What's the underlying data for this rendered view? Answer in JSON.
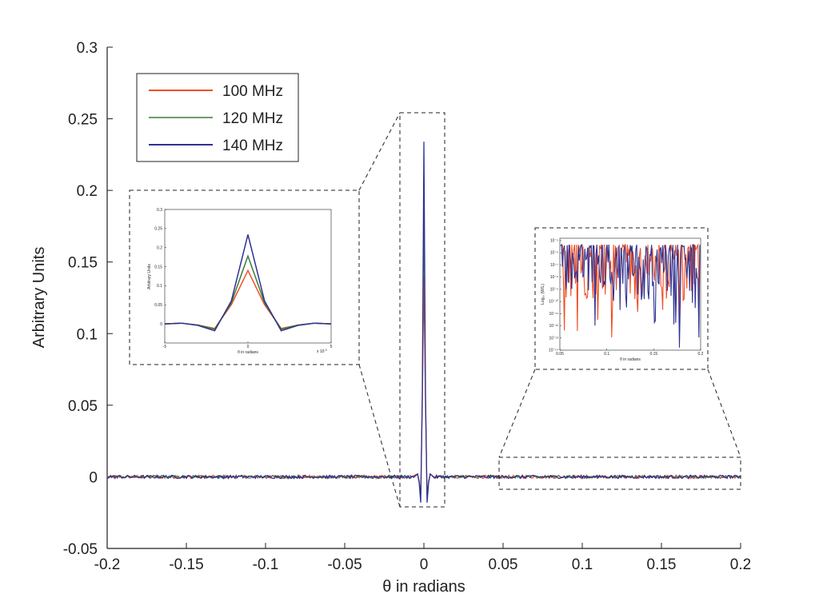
{
  "chart_data": {
    "type": "line",
    "xlabel": "θ in radians",
    "ylabel": "Arbitrary Units",
    "xlim": [
      -0.2,
      0.2
    ],
    "ylim": [
      -0.05,
      0.3
    ],
    "grid": false,
    "legend_position": "top-left",
    "x_ticks": [
      "-0.2",
      "-0.15",
      "-0.1",
      "-0.05",
      "0",
      "0.05",
      "0.1",
      "0.15",
      "0.2"
    ],
    "y_ticks": [
      "-0.05",
      "0",
      "0.05",
      "0.1",
      "0.15",
      "0.2",
      "0.25",
      "0.3"
    ],
    "series": [
      {
        "name": "100 MHz",
        "color": "#f04e23",
        "peak": 0.14,
        "points": [
          [
            -0.2,
            0.0
          ],
          [
            -0.004,
            0.002
          ],
          [
            -0.003,
            -0.003
          ],
          [
            -0.002,
            -0.012
          ],
          [
            -0.001,
            0.05
          ],
          [
            0.0,
            0.14
          ],
          [
            0.001,
            0.05
          ],
          [
            0.002,
            -0.012
          ],
          [
            0.003,
            -0.003
          ],
          [
            0.004,
            0.002
          ],
          [
            0.2,
            0.0
          ]
        ]
      },
      {
        "name": "120 MHz",
        "color": "#3a7d3a",
        "peak": 0.178,
        "points": [
          [
            -0.2,
            0.0
          ],
          [
            -0.004,
            0.002
          ],
          [
            -0.003,
            -0.003
          ],
          [
            -0.002,
            -0.014
          ],
          [
            -0.001,
            0.055
          ],
          [
            0.0,
            0.178
          ],
          [
            0.001,
            0.055
          ],
          [
            0.002,
            -0.014
          ],
          [
            0.003,
            -0.003
          ],
          [
            0.004,
            0.002
          ],
          [
            0.2,
            0.0
          ]
        ]
      },
      {
        "name": "140 MHz",
        "color": "#2e3192",
        "peak": 0.234,
        "points": [
          [
            -0.2,
            0.0
          ],
          [
            -0.004,
            0.002
          ],
          [
            -0.003,
            -0.004
          ],
          [
            -0.002,
            -0.018
          ],
          [
            -0.001,
            0.06
          ],
          [
            0.0,
            0.234
          ],
          [
            0.001,
            0.06
          ],
          [
            0.002,
            -0.018
          ],
          [
            0.003,
            -0.004
          ],
          [
            0.004,
            0.002
          ],
          [
            0.2,
            0.0
          ]
        ]
      }
    ],
    "insets": [
      {
        "type": "line",
        "xlabel": "θ in radians",
        "ylabel": "Arbitrary Units",
        "xlim": [
          -5,
          5
        ],
        "ylim": [
          -0.05,
          0.3
        ],
        "x_multiplier": "x 10",
        "x_multiplier_exponent": "-3",
        "x_ticks": [
          "-5",
          "0",
          "5"
        ],
        "y_ticks": [
          "0",
          "0.05",
          "0.1",
          "0.15",
          "0.2",
          "0.25",
          "0.3"
        ],
        "series": [
          {
            "name": "100 MHz",
            "x": [
              -5,
              -4,
              -3,
              -2,
              -1,
              0,
              1,
              2,
              3,
              4,
              5
            ],
            "y": [
              0.0,
              0.002,
              -0.003,
              -0.012,
              0.05,
              0.14,
              0.05,
              -0.012,
              -0.003,
              0.002,
              0.0
            ]
          },
          {
            "name": "120 MHz",
            "x": [
              -5,
              -4,
              -3,
              -2,
              -1,
              0,
              1,
              2,
              3,
              4,
              5
            ],
            "y": [
              0.0,
              0.002,
              -0.003,
              -0.014,
              0.055,
              0.178,
              0.055,
              -0.014,
              -0.003,
              0.002,
              0.0
            ]
          },
          {
            "name": "140 MHz",
            "x": [
              -5,
              -4,
              -3,
              -2,
              -1,
              0,
              1,
              2,
              3,
              4,
              5
            ],
            "y": [
              0.0,
              0.002,
              -0.004,
              -0.018,
              0.06,
              0.234,
              0.06,
              -0.018,
              -0.004,
              0.002,
              0.0
            ]
          }
        ]
      },
      {
        "type": "line",
        "xlabel": "θ in radians",
        "ylabel": "Log₁₀ (W/L)",
        "yscale": "log",
        "xlim": [
          0.05,
          0.2
        ],
        "x_ticks": [
          "0.05",
          "0.1",
          "0.15",
          "0.2"
        ],
        "y_ticks": [
          "10⁻⁵",
          "10⁻⁶",
          "10⁻⁷",
          "10⁻⁸",
          "10⁻⁹",
          "10⁻¹⁰",
          "10⁻¹¹",
          "10⁻¹²",
          "10⁻¹³",
          "10⁻¹⁴"
        ]
      }
    ]
  }
}
